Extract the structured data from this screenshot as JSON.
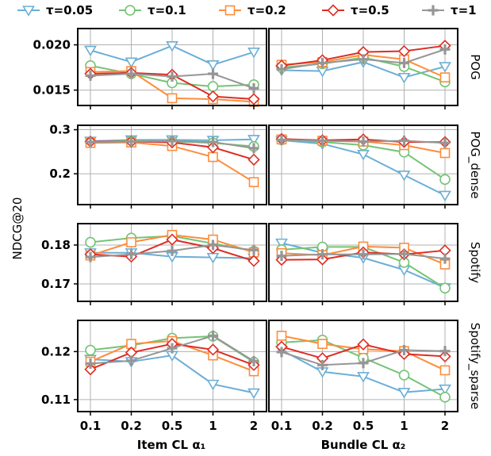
{
  "legend": {
    "entries": [
      {
        "label": "τ=0.05",
        "color": "#6baed6",
        "marker": "triangle-down"
      },
      {
        "label": "τ=0.1",
        "color": "#74c476",
        "marker": "circle"
      },
      {
        "label": "τ=0.2",
        "color": "#fd8d3c",
        "marker": "square"
      },
      {
        "label": "τ=0.5",
        "color": "#de2d26",
        "marker": "diamond"
      },
      {
        "label": "τ=1",
        "color": "#969696",
        "marker": "plus"
      }
    ],
    "placement": "top"
  },
  "ylabel": "NDCG@20",
  "xlabels": [
    "Item CL α₁",
    "Bundle CL α₂"
  ],
  "chart_data": {
    "type": "line",
    "grid": true,
    "categories": [
      "0.1",
      "0.2",
      "0.5",
      "1",
      "2"
    ],
    "rows": [
      {
        "name": "POG",
        "ylim": [
          0.0133,
          0.0218
        ],
        "yticks": [
          0.015,
          0.02
        ],
        "ytick_labels": [
          "0.015",
          "0.020"
        ],
        "panels": [
          {
            "xlabel": "Item CL α₁",
            "series": [
              {
                "name": "τ=0.05",
                "values": [
                  0.0194,
                  0.0181,
                  0.0199,
                  0.0178,
                  0.0192
                ]
              },
              {
                "name": "τ=0.1",
                "values": [
                  0.0177,
                  0.0168,
                  0.0158,
                  0.0154,
                  0.0156
                ]
              },
              {
                "name": "τ=0.2",
                "values": [
                  0.017,
                  0.0171,
                  0.0141,
                  0.014,
                  0.0137
                ]
              },
              {
                "name": "τ=0.5",
                "values": [
                  0.0168,
                  0.0169,
                  0.0167,
                  0.0143,
                  0.014
                ]
              },
              {
                "name": "τ=1",
                "values": [
                  0.0166,
                  0.0168,
                  0.0165,
                  0.0168,
                  0.0152
                ]
              }
            ]
          },
          {
            "xlabel": "Bundle CL α₂",
            "series": [
              {
                "name": "τ=0.05",
                "values": [
                  0.0172,
                  0.0171,
                  0.0181,
                  0.0164,
                  0.0176
                ]
              },
              {
                "name": "τ=0.1",
                "values": [
                  0.0175,
                  0.0179,
                  0.0186,
                  0.0176,
                  0.0159
                ]
              },
              {
                "name": "τ=0.2",
                "values": [
                  0.0178,
                  0.0181,
                  0.0189,
                  0.0184,
                  0.0164
                ]
              },
              {
                "name": "τ=0.5",
                "values": [
                  0.0177,
                  0.0183,
                  0.0192,
                  0.0193,
                  0.0199
                ]
              },
              {
                "name": "τ=1",
                "values": [
                  0.0173,
                  0.018,
                  0.0184,
                  0.018,
                  0.0195
                ]
              }
            ]
          }
        ]
      },
      {
        "name": "POG_dense",
        "ylim": [
          0.13,
          0.31
        ],
        "yticks": [
          0.2,
          0.3
        ],
        "ytick_labels": [
          "0.2",
          "0.3"
        ],
        "panels": [
          {
            "xlabel": "Item CL α₁",
            "series": [
              {
                "name": "τ=0.05",
                "values": [
                  0.274,
                  0.277,
                  0.277,
                  0.276,
                  0.278
                ]
              },
              {
                "name": "τ=0.1",
                "values": [
                  0.272,
                  0.275,
                  0.273,
                  0.27,
                  0.262
                ]
              },
              {
                "name": "τ=0.2",
                "values": [
                  0.27,
                  0.271,
                  0.263,
                  0.238,
                  0.181
                ]
              },
              {
                "name": "τ=0.5",
                "values": [
                  0.273,
                  0.273,
                  0.271,
                  0.26,
                  0.232
                ]
              },
              {
                "name": "τ=1",
                "values": [
                  0.272,
                  0.273,
                  0.274,
                  0.272,
                  0.258
                ]
              }
            ]
          },
          {
            "xlabel": "Bundle CL α₂",
            "series": [
              {
                "name": "τ=0.05",
                "values": [
                  0.276,
                  0.268,
                  0.244,
                  0.197,
                  0.151
                ]
              },
              {
                "name": "τ=0.1",
                "values": [
                  0.277,
                  0.272,
                  0.265,
                  0.249,
                  0.187
                ]
              },
              {
                "name": "τ=0.2",
                "values": [
                  0.278,
                  0.275,
                  0.273,
                  0.265,
                  0.247
                ]
              },
              {
                "name": "τ=0.5",
                "values": [
                  0.279,
                  0.276,
                  0.278,
                  0.272,
                  0.272
                ]
              },
              {
                "name": "τ=1",
                "values": [
                  0.277,
                  0.275,
                  0.273,
                  0.275,
                  0.27
                ]
              }
            ]
          }
        ]
      },
      {
        "name": "Spotify",
        "ylim": [
          0.1655,
          0.1855
        ],
        "yticks": [
          0.17,
          0.18
        ],
        "ytick_labels": [
          "0.17",
          "0.18"
        ],
        "panels": [
          {
            "xlabel": "Item CL α₁",
            "series": [
              {
                "name": "τ=0.05",
                "values": [
                  0.178,
                  0.178,
                  0.177,
                  0.1768,
                  0.1766
                ]
              },
              {
                "name": "τ=0.1",
                "values": [
                  0.1807,
                  0.1818,
                  0.1823,
                  0.1804,
                  0.1784
                ]
              },
              {
                "name": "τ=0.2",
                "values": [
                  0.1773,
                  0.1807,
                  0.1826,
                  0.1814,
                  0.1781
                ]
              },
              {
                "name": "τ=0.5",
                "values": [
                  0.1776,
                  0.177,
                  0.1814,
                  0.1792,
                  0.1759
                ]
              },
              {
                "name": "τ=1",
                "values": [
                  0.1769,
                  0.1776,
                  0.1785,
                  0.18,
                  0.1787
                ]
              }
            ]
          },
          {
            "xlabel": "Bundle CL α₂",
            "series": [
              {
                "name": "τ=0.05",
                "values": [
                  0.1805,
                  0.178,
                  0.1767,
                  0.1736,
                  0.169
                ]
              },
              {
                "name": "τ=0.1",
                "values": [
                  0.1788,
                  0.1795,
                  0.1795,
                  0.1755,
                  0.1689
                ]
              },
              {
                "name": "τ=0.2",
                "values": [
                  0.1779,
                  0.1774,
                  0.1796,
                  0.1793,
                  0.175
                ]
              },
              {
                "name": "τ=0.5",
                "values": [
                  0.1762,
                  0.1763,
                  0.1781,
                  0.1776,
                  0.1786
                ]
              },
              {
                "name": "τ=1",
                "values": [
                  0.1772,
                  0.1776,
                  0.1776,
                  0.1777,
                  0.1765
                ]
              }
            ]
          }
        ]
      },
      {
        "name": "Spotify_sparse",
        "ylim": [
          0.1075,
          0.1265
        ],
        "yticks": [
          0.11,
          0.12
        ],
        "ytick_labels": [
          "0.11",
          "0.12"
        ],
        "panels": [
          {
            "xlabel": "Item CL α₁",
            "series": [
              {
                "name": "τ=0.05",
                "values": [
                  0.1184,
                  0.1179,
                  0.1192,
                  0.1132,
                  0.1114
                ]
              },
              {
                "name": "τ=0.1",
                "values": [
                  0.1203,
                  0.1213,
                  0.1228,
                  0.1232,
                  0.1178
                ]
              },
              {
                "name": "τ=0.2",
                "values": [
                  0.1179,
                  0.1216,
                  0.1222,
                  0.1192,
                  0.1159
                ]
              },
              {
                "name": "τ=0.5",
                "values": [
                  0.1163,
                  0.1198,
                  0.1216,
                  0.1204,
                  0.1172
                ]
              },
              {
                "name": "τ=1",
                "values": [
                  0.1175,
                  0.1181,
                  0.1207,
                  0.1233,
                  0.118
                ]
              }
            ]
          },
          {
            "xlabel": "Bundle CL α₂",
            "series": [
              {
                "name": "τ=0.05",
                "values": [
                  0.1203,
                  0.1158,
                  0.1148,
                  0.1115,
                  0.1122
                ]
              },
              {
                "name": "τ=0.1",
                "values": [
                  0.1219,
                  0.1224,
                  0.1187,
                  0.1151,
                  0.1105
                ]
              },
              {
                "name": "τ=0.2",
                "values": [
                  0.1233,
                  0.1216,
                  0.1205,
                  0.1201,
                  0.1161
                ]
              },
              {
                "name": "τ=0.5",
                "values": [
                  0.121,
                  0.1186,
                  0.1215,
                  0.1195,
                  0.119
                ]
              },
              {
                "name": "τ=1",
                "values": [
                  0.1199,
                  0.1172,
                  0.1176,
                  0.1203,
                  0.1201
                ]
              }
            ]
          }
        ]
      }
    ]
  }
}
